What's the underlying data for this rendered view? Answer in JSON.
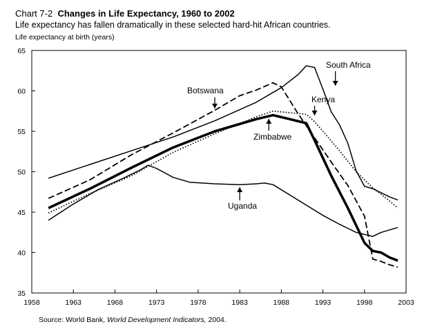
{
  "header": {
    "chart_number": "Chart 7-2",
    "title": "Changes in Life Expectancy, 1960 to 2002",
    "subtitle": "Life expectancy has fallen dramatically in these selected hard-hit African countries."
  },
  "footer": {
    "source_prefix": "Source:  World Bank, ",
    "source_title": "World Development Indicators,",
    "source_suffix": " 2004."
  },
  "chart_data": {
    "type": "line",
    "title": "Changes in Life Expectancy, 1960 to 2002",
    "ylabel": "Life expectancy at birth (years)",
    "xlabel": "",
    "xlim": [
      1958,
      2003
    ],
    "ylim": [
      35,
      65
    ],
    "x_ticks": [
      "1958",
      "1963",
      "1968",
      "1973",
      "1978",
      "1983",
      "1988",
      "1993",
      "1998",
      "2003"
    ],
    "y_ticks": [
      "35",
      "40",
      "45",
      "50",
      "55",
      "60",
      "65"
    ],
    "grid": false,
    "series": [
      {
        "name": "South Africa",
        "style": "solid",
        "points": [
          [
            1960,
            49.2
          ],
          [
            1965,
            50.9
          ],
          [
            1970,
            52.6
          ],
          [
            1975,
            54.3
          ],
          [
            1980,
            56.3
          ],
          [
            1985,
            58.6
          ],
          [
            1988,
            60.4
          ],
          [
            1990,
            62.0
          ],
          [
            1991,
            63.1
          ],
          [
            1992,
            62.9
          ],
          [
            1993,
            60.2
          ],
          [
            1994,
            57.4
          ],
          [
            1995,
            55.8
          ],
          [
            1996,
            53.5
          ],
          [
            1997,
            50.1
          ],
          [
            1998,
            48.2
          ],
          [
            1999,
            47.9
          ],
          [
            2000,
            47.4
          ],
          [
            2001,
            46.9
          ],
          [
            2002,
            46.5
          ]
        ]
      },
      {
        "name": "Botswana",
        "style": "dashed",
        "points": [
          [
            1960,
            46.7
          ],
          [
            1965,
            49.0
          ],
          [
            1970,
            52.1
          ],
          [
            1975,
            54.8
          ],
          [
            1980,
            57.6
          ],
          [
            1983,
            59.4
          ],
          [
            1985,
            60.1
          ],
          [
            1987,
            61.0
          ],
          [
            1988,
            60.5
          ],
          [
            1990,
            57.2
          ],
          [
            1992,
            54.2
          ],
          [
            1994,
            51.2
          ],
          [
            1996,
            48.3
          ],
          [
            1998,
            44.5
          ],
          [
            1999,
            39.2
          ],
          [
            2000,
            38.9
          ],
          [
            2001,
            38.5
          ],
          [
            2002,
            38.2
          ]
        ]
      },
      {
        "name": "Kenya",
        "style": "dotted",
        "points": [
          [
            1960,
            44.9
          ],
          [
            1965,
            47.3
          ],
          [
            1970,
            49.5
          ],
          [
            1975,
            52.4
          ],
          [
            1980,
            54.7
          ],
          [
            1985,
            56.8
          ],
          [
            1987,
            57.5
          ],
          [
            1989,
            57.3
          ],
          [
            1991,
            57.1
          ],
          [
            1992,
            56.2
          ],
          [
            1993,
            55.0
          ],
          [
            1995,
            52.6
          ],
          [
            1997,
            50.0
          ],
          [
            1999,
            48.0
          ],
          [
            2001,
            46.4
          ],
          [
            2002,
            45.5
          ]
        ]
      },
      {
        "name": "Zimbabwe",
        "style": "thick",
        "points": [
          [
            1960,
            45.5
          ],
          [
            1965,
            47.9
          ],
          [
            1970,
            50.5
          ],
          [
            1975,
            53.0
          ],
          [
            1980,
            55.0
          ],
          [
            1985,
            56.5
          ],
          [
            1987,
            57.0
          ],
          [
            1989,
            56.5
          ],
          [
            1991,
            56.0
          ],
          [
            1992,
            53.9
          ],
          [
            1994,
            49.5
          ],
          [
            1996,
            45.5
          ],
          [
            1998,
            41.2
          ],
          [
            1999,
            40.2
          ],
          [
            2000,
            40.0
          ],
          [
            2001,
            39.4
          ],
          [
            2002,
            39.0
          ]
        ]
      },
      {
        "name": "Uganda",
        "style": "solid",
        "points": [
          [
            1960,
            44.0
          ],
          [
            1963,
            46.0
          ],
          [
            1966,
            47.8
          ],
          [
            1969,
            49.2
          ],
          [
            1971,
            50.2
          ],
          [
            1972,
            50.8
          ],
          [
            1973,
            50.4
          ],
          [
            1975,
            49.3
          ],
          [
            1977,
            48.7
          ],
          [
            1980,
            48.5
          ],
          [
            1983,
            48.4
          ],
          [
            1985,
            48.5
          ],
          [
            1986,
            48.6
          ],
          [
            1987,
            48.4
          ],
          [
            1990,
            46.5
          ],
          [
            1993,
            44.6
          ],
          [
            1995,
            43.5
          ],
          [
            1997,
            42.5
          ],
          [
            1999,
            42.0
          ],
          [
            2000,
            42.5
          ],
          [
            2002,
            43.1
          ]
        ]
      }
    ],
    "annotations": [
      {
        "label": "South Africa",
        "arrow_year": 1994.5
      },
      {
        "label": "Botswana",
        "arrow_year": 1980
      },
      {
        "label": "Kenya",
        "arrow_year": 1992
      },
      {
        "label": "Zimbabwe",
        "arrow_year": 1986.5
      },
      {
        "label": "Uganda",
        "arrow_year": 1983
      }
    ]
  }
}
